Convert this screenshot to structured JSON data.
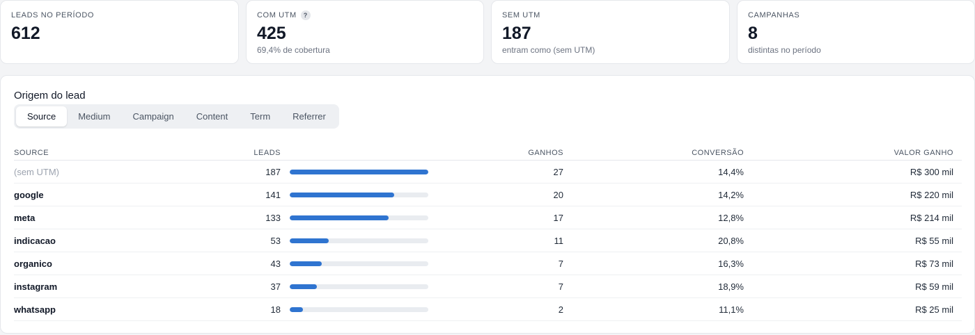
{
  "kpis": [
    {
      "label": "LEADS NO PERÍODO",
      "value": "612",
      "sub": "",
      "help": false
    },
    {
      "label": "COM UTM",
      "value": "425",
      "sub": "69,4% de cobertura",
      "help": true,
      "help_glyph": "?"
    },
    {
      "label": "SEM UTM",
      "value": "187",
      "sub": "entram como (sem UTM)",
      "help": false
    },
    {
      "label": "CAMPANHAS",
      "value": "8",
      "sub": "distintas no período",
      "help": false
    }
  ],
  "origin": {
    "title": "Origem do lead",
    "tabs": [
      {
        "label": "Source",
        "active": true
      },
      {
        "label": "Medium",
        "active": false
      },
      {
        "label": "Campaign",
        "active": false
      },
      {
        "label": "Content",
        "active": false
      },
      {
        "label": "Term",
        "active": false
      },
      {
        "label": "Referrer",
        "active": false
      }
    ],
    "columns": {
      "source": "SOURCE",
      "leads": "LEADS",
      "ganhos": "GANHOS",
      "conversao": "CONVERSÃO",
      "valor": "VALOR GANHO"
    },
    "bar_max": 187,
    "rows": [
      {
        "source": "(sem UTM)",
        "muted": true,
        "leads": "187",
        "leads_value": 187,
        "ganhos": "27",
        "conversao": "14,4%",
        "valor": "R$ 300 mil"
      },
      {
        "source": "google",
        "muted": false,
        "leads": "141",
        "leads_value": 141,
        "ganhos": "20",
        "conversao": "14,2%",
        "valor": "R$ 220 mil"
      },
      {
        "source": "meta",
        "muted": false,
        "leads": "133",
        "leads_value": 133,
        "ganhos": "17",
        "conversao": "12,8%",
        "valor": "R$ 214 mil"
      },
      {
        "source": "indicacao",
        "muted": false,
        "leads": "53",
        "leads_value": 53,
        "ganhos": "11",
        "conversao": "20,8%",
        "valor": "R$ 55 mil"
      },
      {
        "source": "organico",
        "muted": false,
        "leads": "43",
        "leads_value": 43,
        "ganhos": "7",
        "conversao": "16,3%",
        "valor": "R$ 73 mil"
      },
      {
        "source": "instagram",
        "muted": false,
        "leads": "37",
        "leads_value": 37,
        "ganhos": "7",
        "conversao": "18,9%",
        "valor": "R$ 59 mil"
      },
      {
        "source": "whatsapp",
        "muted": false,
        "leads": "18",
        "leads_value": 18,
        "ganhos": "2",
        "conversao": "11,1%",
        "valor": "R$ 25 mil"
      }
    ]
  },
  "colors": {
    "bar_fill": "#2f74d0",
    "bar_track": "#e9ecf0"
  }
}
